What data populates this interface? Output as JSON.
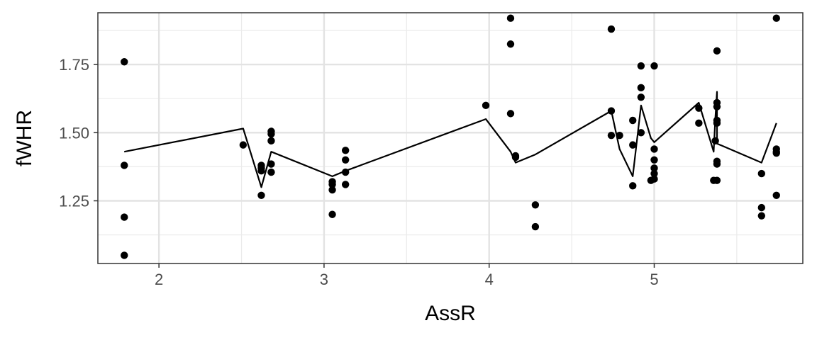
{
  "chart_data": {
    "type": "scatter",
    "xlabel": "AssR",
    "ylabel": "fWHR",
    "xlim": [
      1.63,
      5.9
    ],
    "ylim": [
      1.02,
      1.94
    ],
    "x_ticks": [
      2,
      3,
      4,
      5
    ],
    "x_tick_labels": [
      "2",
      "3",
      "4",
      "5"
    ],
    "y_ticks": [
      1.25,
      1.5,
      1.75
    ],
    "y_tick_labels": [
      "1.25",
      "1.50",
      "1.75"
    ],
    "x_minor": [
      2.5,
      3.5,
      4.5,
      5.5
    ],
    "y_minor": [
      1.125,
      1.375,
      1.625,
      1.875
    ],
    "grid": true,
    "theme": "bw",
    "point_color": "#000000",
    "line_color": "#000000",
    "points": [
      [
        1.79,
        1.76
      ],
      [
        1.79,
        1.38
      ],
      [
        1.79,
        1.19
      ],
      [
        1.79,
        1.05
      ],
      [
        2.51,
        1.455
      ],
      [
        2.62,
        1.38
      ],
      [
        2.62,
        1.37
      ],
      [
        2.62,
        1.36
      ],
      [
        2.62,
        1.27
      ],
      [
        2.68,
        1.505
      ],
      [
        2.68,
        1.495
      ],
      [
        2.68,
        1.47
      ],
      [
        2.68,
        1.385
      ],
      [
        2.68,
        1.355
      ],
      [
        3.05,
        1.32
      ],
      [
        3.05,
        1.31
      ],
      [
        3.05,
        1.29
      ],
      [
        3.05,
        1.2
      ],
      [
        3.13,
        1.435
      ],
      [
        3.13,
        1.4
      ],
      [
        3.13,
        1.355
      ],
      [
        3.13,
        1.31
      ],
      [
        3.98,
        1.6
      ],
      [
        4.13,
        1.92
      ],
      [
        4.13,
        1.825
      ],
      [
        4.13,
        1.57
      ],
      [
        4.16,
        1.415
      ],
      [
        4.16,
        1.41
      ],
      [
        4.28,
        1.235
      ],
      [
        4.28,
        1.155
      ],
      [
        4.74,
        1.88
      ],
      [
        4.74,
        1.58
      ],
      [
        4.74,
        1.49
      ],
      [
        4.79,
        1.49
      ],
      [
        4.87,
        1.545
      ],
      [
        4.87,
        1.455
      ],
      [
        4.87,
        1.305
      ],
      [
        4.92,
        1.745
      ],
      [
        4.92,
        1.665
      ],
      [
        4.92,
        1.63
      ],
      [
        4.92,
        1.5
      ],
      [
        4.98,
        1.325
      ],
      [
        5.0,
        1.745
      ],
      [
        5.0,
        1.44
      ],
      [
        5.0,
        1.4
      ],
      [
        5.0,
        1.37
      ],
      [
        5.0,
        1.35
      ],
      [
        5.0,
        1.33
      ],
      [
        5.27,
        1.59
      ],
      [
        5.27,
        1.535
      ],
      [
        5.36,
        1.325
      ],
      [
        5.37,
        1.47
      ],
      [
        5.38,
        1.8
      ],
      [
        5.38,
        1.61
      ],
      [
        5.38,
        1.595
      ],
      [
        5.38,
        1.545
      ],
      [
        5.38,
        1.535
      ],
      [
        5.38,
        1.395
      ],
      [
        5.38,
        1.385
      ],
      [
        5.38,
        1.325
      ],
      [
        5.65,
        1.35
      ],
      [
        5.65,
        1.225
      ],
      [
        5.65,
        1.195
      ],
      [
        5.74,
        1.92
      ],
      [
        5.74,
        1.44
      ],
      [
        5.74,
        1.43
      ],
      [
        5.74,
        1.425
      ],
      [
        5.74,
        1.27
      ]
    ],
    "line": [
      [
        1.79,
        1.43
      ],
      [
        2.51,
        1.515
      ],
      [
        2.62,
        1.3
      ],
      [
        2.68,
        1.43
      ],
      [
        3.05,
        1.34
      ],
      [
        3.13,
        1.36
      ],
      [
        3.98,
        1.55
      ],
      [
        4.13,
        1.43
      ],
      [
        4.16,
        1.39
      ],
      [
        4.28,
        1.42
      ],
      [
        4.74,
        1.58
      ],
      [
        4.79,
        1.44
      ],
      [
        4.87,
        1.34
      ],
      [
        4.92,
        1.6
      ],
      [
        4.98,
        1.48
      ],
      [
        5.0,
        1.465
      ],
      [
        5.27,
        1.61
      ],
      [
        5.36,
        1.43
      ],
      [
        5.37,
        1.55
      ],
      [
        5.38,
        1.65
      ],
      [
        5.38,
        1.46
      ],
      [
        5.65,
        1.39
      ],
      [
        5.74,
        1.535
      ]
    ]
  }
}
